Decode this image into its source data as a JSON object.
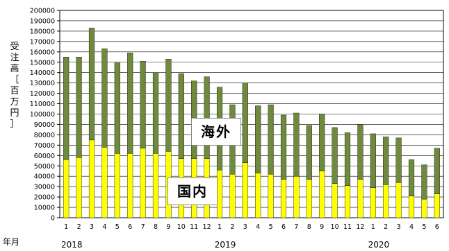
{
  "chart_data": {
    "type": "bar",
    "stacked": true,
    "ylabel": "受注高［百万円］",
    "ylim": [
      0,
      200000
    ],
    "ytick_step": 10000,
    "grid": true,
    "categories": [
      "1",
      "2",
      "3",
      "4",
      "5",
      "6",
      "7",
      "8",
      "9",
      "10",
      "11",
      "12",
      "1",
      "2",
      "3",
      "4",
      "5",
      "6",
      "7",
      "8",
      "9",
      "10",
      "11",
      "12",
      "1",
      "2",
      "3",
      "4",
      "5",
      "6"
    ],
    "year_row_label": "年月",
    "year_labels": [
      {
        "label": "2018",
        "start_index": 0
      },
      {
        "label": "2019",
        "start_index": 12
      },
      {
        "label": "2020",
        "start_index": 24
      }
    ],
    "series": [
      {
        "name": "国内",
        "color": "#ffff00",
        "values": [
          56000,
          58000,
          75000,
          68000,
          62000,
          62000,
          67000,
          62000,
          64000,
          57000,
          57000,
          57000,
          46000,
          42000,
          53000,
          43000,
          42000,
          37000,
          40000,
          37000,
          45000,
          33000,
          31000,
          37000,
          29000,
          32000,
          34000,
          21000,
          18000,
          23000
        ]
      },
      {
        "name": "海外",
        "color": "#6f8a3c",
        "values": [
          99000,
          97000,
          108000,
          95000,
          88000,
          97000,
          84000,
          78000,
          89000,
          82000,
          75000,
          79000,
          80000,
          67000,
          77000,
          65000,
          67000,
          62000,
          61000,
          52000,
          55000,
          54000,
          51000,
          53000,
          52000,
          46000,
          43000,
          35000,
          33000,
          44000
        ]
      }
    ],
    "annotations": [
      {
        "text": "海外",
        "series": "海外"
      },
      {
        "text": "国内",
        "series": "国内"
      }
    ]
  }
}
